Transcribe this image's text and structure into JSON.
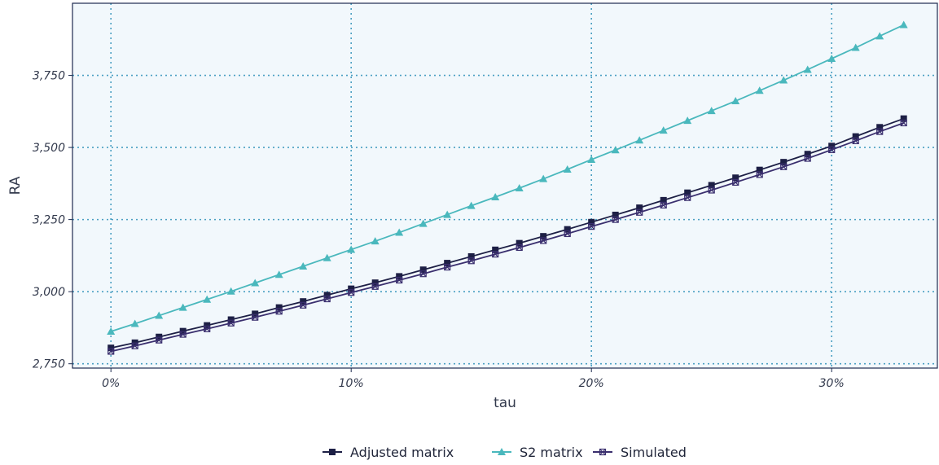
{
  "chart_data": {
    "type": "line",
    "xlabel": "tau",
    "ylabel": "RA",
    "x": [
      0,
      0.01,
      0.02,
      0.03,
      0.04,
      0.05,
      0.06,
      0.07,
      0.08,
      0.09,
      0.1,
      0.11,
      0.12,
      0.13,
      0.14,
      0.15,
      0.16,
      0.17,
      0.18,
      0.19,
      0.2,
      0.21,
      0.22,
      0.23,
      0.24,
      0.25,
      0.26,
      0.27,
      0.28,
      0.29,
      0.3,
      0.31,
      0.32,
      0.33
    ],
    "xlim": [
      -0.016,
      0.344
    ],
    "ylim": [
      2735,
      4000
    ],
    "x_ticks": [
      {
        "value": 0,
        "label": "0%"
      },
      {
        "value": 0.1,
        "label": "10%"
      },
      {
        "value": 0.2,
        "label": "20%"
      },
      {
        "value": 0.3,
        "label": "30%"
      }
    ],
    "y_ticks": [
      {
        "value": 2750,
        "label": "2,750"
      },
      {
        "value": 3000,
        "label": "3,000"
      },
      {
        "value": 3250,
        "label": "3,250"
      },
      {
        "value": 3500,
        "label": "3,500"
      },
      {
        "value": 3750,
        "label": "3,750"
      }
    ],
    "grid": true,
    "legend_position": "bottom",
    "series": [
      {
        "name": "Adjusted matrix",
        "color": "#1d1f45",
        "marker": "square",
        "values": [
          2805,
          2823,
          2843,
          2863,
          2883,
          2903,
          2923,
          2945,
          2966,
          2988,
          3010,
          3031,
          3053,
          3076,
          3099,
          3122,
          3145,
          3168,
          3192,
          3216,
          3241,
          3266,
          3291,
          3317,
          3343,
          3369,
          3395,
          3422,
          3449,
          3477,
          3505,
          3538,
          3570,
          3600
        ]
      },
      {
        "name": "S2 matrix",
        "color": "#4ab8bd",
        "marker": "triangle",
        "values": [
          2862,
          2889,
          2917,
          2945,
          2973,
          3001,
          3030,
          3059,
          3088,
          3117,
          3146,
          3175,
          3205,
          3236,
          3267,
          3298,
          3328,
          3359,
          3391,
          3424,
          3458,
          3491,
          3525,
          3559,
          3593,
          3627,
          3661,
          3697,
          3733,
          3770,
          3808,
          3846,
          3886,
          3925
        ]
      },
      {
        "name": "Simulated",
        "color": "#3a2f6e",
        "marker": "cross-square",
        "values": [
          2793,
          2812,
          2832,
          2852,
          2871,
          2891,
          2911,
          2932,
          2953,
          2975,
          2997,
          3018,
          3040,
          3062,
          3085,
          3107,
          3130,
          3153,
          3177,
          3201,
          3226,
          3250,
          3275,
          3300,
          3326,
          3352,
          3379,
          3406,
          3433,
          3462,
          3492,
          3523,
          3555,
          3585
        ]
      }
    ]
  }
}
